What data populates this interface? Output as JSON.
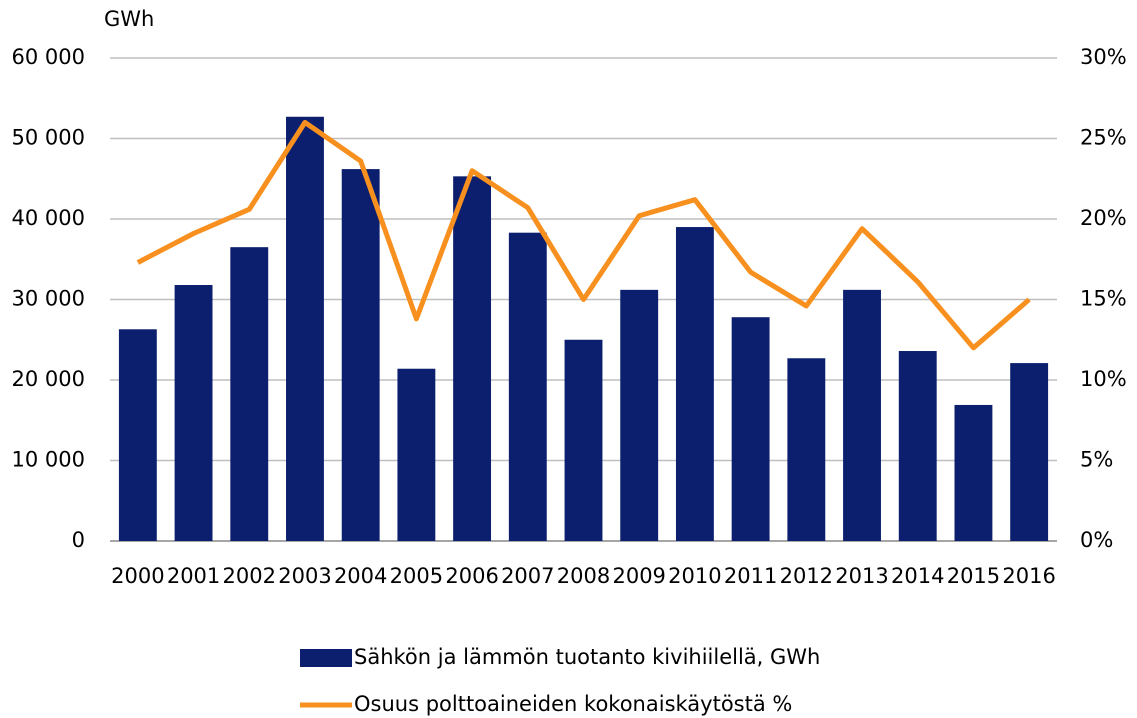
{
  "chart_data": {
    "type": "bar_line",
    "y_label": "GWh",
    "categories": [
      "2000",
      "2001",
      "2002",
      "2003",
      "2004",
      "2005",
      "2006",
      "2007",
      "2008",
      "2009",
      "2010",
      "2011",
      "2012",
      "2013",
      "2014",
      "2015",
      "2016"
    ],
    "series": [
      {
        "name": "Sähkön ja lämmön tuotanto kivihiilellä, GWh",
        "type": "bar",
        "color": "#0c1f6e",
        "values": [
          26300,
          31800,
          36500,
          52700,
          46200,
          21400,
          45300,
          38300,
          25000,
          31200,
          39000,
          27800,
          22700,
          31200,
          23600,
          16900,
          22100
        ]
      },
      {
        "name": "Osuus polttoaineiden kokonaiskäytöstä %",
        "type": "line",
        "axis": "y2",
        "color": "#f7901e",
        "values": [
          17.3,
          19.1,
          20.6,
          26.0,
          23.6,
          13.8,
          23.0,
          20.7,
          15.0,
          20.2,
          21.2,
          16.7,
          14.6,
          19.4,
          16.1,
          12.0,
          15.0
        ]
      }
    ],
    "ylim": [
      0,
      60000
    ],
    "yticks": [
      0,
      {
        "value": 10000,
        "label": "10 000"
      },
      {
        "value": 20000,
        "label": "20 000"
      },
      {
        "value": 30000,
        "label": "30 000"
      },
      {
        "value": 40000,
        "label": "40 000"
      },
      {
        "value": 50000,
        "label": "50 000"
      },
      {
        "value": 60000,
        "label": "60 000"
      }
    ],
    "y2lim": [
      0,
      30
    ],
    "y2ticks": [
      {
        "value": 0,
        "label": "0%"
      },
      {
        "value": 5,
        "label": "5%"
      },
      {
        "value": 10,
        "label": "10%"
      },
      {
        "value": 15,
        "label": "15%"
      },
      {
        "value": 20,
        "label": "20%"
      },
      {
        "value": 25,
        "label": "25%"
      },
      {
        "value": 30,
        "label": "30%"
      }
    ],
    "grid": true,
    "legend": "bottom"
  }
}
